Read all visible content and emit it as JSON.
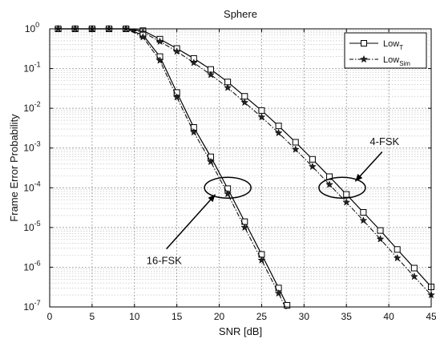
{
  "chart_data": {
    "type": "line",
    "title": "Sphere",
    "xlabel": "SNR [dB]",
    "ylabel": "Frame Error Probability",
    "xlim": [
      0,
      45
    ],
    "ylim": [
      1e-07,
      1
    ],
    "yscale": "log",
    "grid": true,
    "legend_position": "top-right",
    "x_ticks": [
      0,
      5,
      10,
      15,
      20,
      25,
      30,
      35,
      40,
      45
    ],
    "y_ticks": [
      {
        "base": "10",
        "exp": "0",
        "value": 1
      },
      {
        "base": "10",
        "exp": "-1",
        "value": 0.1
      },
      {
        "base": "10",
        "exp": "-2",
        "value": 0.01
      },
      {
        "base": "10",
        "exp": "-3",
        "value": 0.001
      },
      {
        "base": "10",
        "exp": "-4",
        "value": 0.0001
      },
      {
        "base": "10",
        "exp": "-5",
        "value": 1e-05
      },
      {
        "base": "10",
        "exp": "-6",
        "value": 1e-06
      },
      {
        "base": "10",
        "exp": "-7",
        "value": 1e-07
      }
    ],
    "legend": [
      {
        "base": "Low",
        "sub": "T",
        "style": "solid",
        "marker": "square"
      },
      {
        "base": "Low",
        "sub": "Sim",
        "style": "dashdot",
        "marker": "star"
      }
    ],
    "series": [
      {
        "group": "4-FSK",
        "style": "solid",
        "marker": "square",
        "x": [
          1,
          3,
          5,
          7,
          9,
          11,
          13,
          15,
          17,
          19,
          21,
          23,
          25,
          27,
          29,
          31,
          33,
          35,
          37,
          39,
          41,
          43,
          45
        ],
        "y": [
          1,
          1,
          1,
          1,
          1,
          0.9,
          0.55,
          0.32,
          0.18,
          0.095,
          0.046,
          0.02,
          0.0088,
          0.0036,
          0.0014,
          0.00052,
          0.00019,
          6.8e-05,
          2.4e-05,
          8.4e-06,
          2.8e-06,
          9.5e-07,
          3.2e-07
        ]
      },
      {
        "group": "4-FSK",
        "style": "dashdot",
        "marker": "star",
        "x": [
          1,
          3,
          5,
          7,
          9,
          11,
          13,
          15,
          17,
          19,
          21,
          23,
          25,
          27,
          29,
          31,
          33,
          35,
          37,
          39,
          41,
          43,
          45
        ],
        "y": [
          1,
          1,
          1,
          1,
          1,
          0.82,
          0.48,
          0.27,
          0.14,
          0.07,
          0.033,
          0.014,
          0.006,
          0.0024,
          0.00092,
          0.00034,
          0.00012,
          4.3e-05,
          1.5e-05,
          5.1e-06,
          1.7e-06,
          5.8e-07,
          2e-07
        ]
      },
      {
        "group": "16-FSK",
        "style": "solid",
        "marker": "square",
        "x": [
          1,
          3,
          5,
          7,
          9,
          11,
          13,
          15,
          17,
          19,
          21,
          23,
          25,
          27,
          28
        ],
        "y": [
          1,
          1,
          1,
          1,
          1,
          0.7,
          0.2,
          0.025,
          0.0033,
          0.0006,
          9.5e-05,
          1.4e-05,
          2.1e-06,
          3e-07,
          1.1e-07
        ]
      },
      {
        "group": "16-FSK",
        "style": "dashdot",
        "marker": "star",
        "x": [
          1,
          3,
          5,
          7,
          9,
          11,
          13,
          15,
          17,
          19,
          21,
          23,
          25,
          27,
          28
        ],
        "y": [
          1,
          1,
          1,
          1,
          1,
          0.62,
          0.16,
          0.019,
          0.0025,
          0.00045,
          7e-05,
          1e-05,
          1.5e-06,
          2.2e-07,
          8e-08
        ]
      }
    ],
    "annotations": [
      {
        "text": "4-FSK",
        "ellipse_center": [
          34.5,
          0.0001
        ],
        "text_at": [
          39.5,
          0.0012
        ]
      },
      {
        "text": "16-FSK",
        "ellipse_center": [
          21,
          0.0001
        ],
        "text_at": [
          13.5,
          1.2e-06
        ]
      }
    ]
  }
}
